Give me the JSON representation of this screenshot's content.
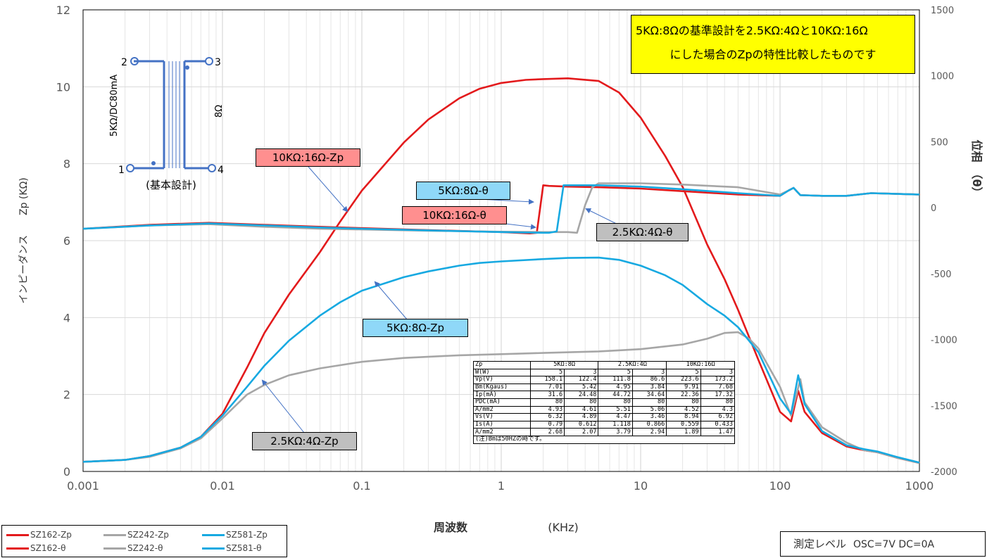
{
  "chart_data": {
    "type": "line",
    "x_scale": "log",
    "xlim": [
      0.001,
      1000
    ],
    "ylim": [
      0,
      12
    ],
    "y2lim": [
      -2000,
      1500
    ],
    "x_ticks": [
      "0.001",
      "0.01",
      "0.1",
      "1",
      "10",
      "100",
      "1000"
    ],
    "y_ticks": [
      "0",
      "2",
      "4",
      "6",
      "8",
      "10",
      "12"
    ],
    "y2_ticks": [
      "-2000",
      "-1500",
      "-1000",
      "-500",
      "0",
      "500",
      "1000",
      "1500"
    ],
    "xlabel": "周波数",
    "xlabel_unit": "(KHz)",
    "ylabel": "インピーダンス　　Zp (KΩ)",
    "y2label": "位相　（θ）",
    "grid": true,
    "series": [
      {
        "name": "SZ162-Zp",
        "axis": "left",
        "color": "#e31a1c",
        "x": [
          0.001,
          0.002,
          0.003,
          0.005,
          0.007,
          0.01,
          0.015,
          0.02,
          0.03,
          0.05,
          0.07,
          0.1,
          0.2,
          0.3,
          0.5,
          0.7,
          1,
          1.5,
          2,
          3,
          5,
          7,
          10,
          15,
          20,
          30,
          40,
          50,
          70,
          100,
          120,
          135,
          150,
          200,
          300,
          400,
          500,
          700,
          1000
        ],
        "values": [
          0.25,
          0.3,
          0.4,
          0.62,
          0.9,
          1.5,
          2.7,
          3.6,
          4.6,
          5.7,
          6.5,
          7.3,
          8.55,
          9.15,
          9.7,
          9.95,
          10.1,
          10.18,
          10.2,
          10.22,
          10.15,
          9.85,
          9.2,
          8.2,
          7.4,
          5.9,
          5.0,
          4.2,
          2.9,
          1.55,
          1.3,
          2.1,
          1.55,
          1.0,
          0.65,
          0.55,
          0.5,
          0.35,
          0.22
        ]
      },
      {
        "name": "SZ242-Zp",
        "axis": "left",
        "color": "#a6a6a6",
        "x": [
          0.001,
          0.002,
          0.003,
          0.005,
          0.007,
          0.01,
          0.015,
          0.02,
          0.03,
          0.05,
          0.1,
          0.2,
          0.5,
          1,
          2,
          5,
          10,
          20,
          30,
          40,
          50,
          60,
          70,
          100,
          120,
          140,
          150,
          200,
          300,
          400,
          500,
          700,
          1000
        ],
        "values": [
          0.25,
          0.3,
          0.38,
          0.6,
          0.86,
          1.38,
          2.0,
          2.25,
          2.5,
          2.68,
          2.85,
          2.95,
          3.02,
          3.05,
          3.08,
          3.12,
          3.18,
          3.3,
          3.45,
          3.6,
          3.62,
          3.45,
          3.2,
          2.2,
          1.45,
          2.4,
          1.8,
          1.15,
          0.75,
          0.55,
          0.5,
          0.35,
          0.22
        ]
      },
      {
        "name": "SZ581-Zp",
        "axis": "left",
        "color": "#17a9e1",
        "x": [
          0.001,
          0.002,
          0.003,
          0.005,
          0.007,
          0.01,
          0.015,
          0.02,
          0.03,
          0.05,
          0.07,
          0.1,
          0.2,
          0.3,
          0.5,
          0.7,
          1,
          2,
          3,
          5,
          7,
          10,
          15,
          20,
          30,
          40,
          50,
          70,
          100,
          120,
          135,
          150,
          200,
          300,
          400,
          500,
          700,
          1000
        ],
        "values": [
          0.25,
          0.3,
          0.4,
          0.62,
          0.9,
          1.45,
          2.2,
          2.75,
          3.4,
          4.05,
          4.4,
          4.7,
          5.05,
          5.2,
          5.35,
          5.42,
          5.46,
          5.52,
          5.55,
          5.56,
          5.5,
          5.35,
          5.1,
          4.85,
          4.35,
          4.05,
          3.75,
          3.1,
          1.9,
          1.5,
          2.5,
          1.75,
          1.05,
          0.68,
          0.58,
          0.52,
          0.37,
          0.23
        ]
      },
      {
        "name": "SZ162-θ",
        "axis": "right",
        "color": "#e31a1c",
        "x": [
          0.001,
          0.003,
          0.008,
          0.02,
          0.05,
          0.1,
          0.3,
          1,
          1.6,
          1.8,
          2.0,
          2.2,
          3,
          5,
          10,
          20,
          50,
          100,
          115,
          125,
          140,
          200,
          300,
          450,
          1000
        ],
        "values": [
          -160,
          -130,
          -115,
          -130,
          -145,
          -155,
          -170,
          -185,
          -195,
          -190,
          170,
          165,
          160,
          155,
          145,
          125,
          100,
          90,
          130,
          150,
          95,
          90,
          90,
          110,
          100
        ]
      },
      {
        "name": "SZ242-θ",
        "axis": "right",
        "color": "#a6a6a6",
        "x": [
          0.001,
          0.003,
          0.008,
          0.02,
          0.05,
          0.1,
          0.3,
          1,
          2,
          3,
          3.5,
          4,
          4.5,
          5,
          7,
          10,
          20,
          50,
          100,
          115,
          125,
          140,
          200,
          300,
          450,
          1000
        ],
        "values": [
          -160,
          -135,
          -125,
          -145,
          -160,
          -165,
          -175,
          -182,
          -185,
          -185,
          -190,
          20,
          155,
          185,
          185,
          185,
          175,
          155,
          100,
          130,
          150,
          95,
          90,
          90,
          110,
          100
        ]
      },
      {
        "name": "SZ581-θ",
        "axis": "right",
        "color": "#17a9e1",
        "x": [
          0.001,
          0.003,
          0.008,
          0.02,
          0.05,
          0.1,
          0.3,
          1,
          2,
          2.2,
          2.5,
          2.8,
          3,
          5,
          10,
          20,
          50,
          100,
          115,
          125,
          140,
          200,
          300,
          450,
          1000
        ],
        "values": [
          -160,
          -135,
          -120,
          -135,
          -150,
          -160,
          -172,
          -185,
          -190,
          -190,
          -180,
          170,
          170,
          170,
          160,
          140,
          110,
          90,
          130,
          150,
          95,
          90,
          90,
          110,
          100
        ]
      }
    ],
    "legend_position": "bottom-left"
  },
  "callouts": {
    "zp_10k": "10KΩ:16Ω-Zp",
    "theta_5k": "5KΩ:8Ω-θ",
    "theta_10k": "10KΩ:16Ω-θ",
    "theta_2k5": "2.5KΩ:4Ω-θ",
    "zp_5k": "5KΩ:8Ω-Zp",
    "zp_2k5": "2.5KΩ:4Ω-Zp"
  },
  "note": {
    "line1": "5KΩ:8Ωの基準設計を2.5KΩ:4Ωと10KΩ:16Ω",
    "line2": "にした場合のZpの特性比較したものです"
  },
  "schematic": {
    "pin1": "1",
    "pin2": "2",
    "pin3": "3",
    "pin4": "4",
    "primary": "5KΩ/DC80mA",
    "secondary": "8Ω",
    "caption": "(基本設計)"
  },
  "spec_table": {
    "header": [
      "Zp",
      "5KΩ:8Ω",
      "2.5KΩ:4Ω",
      "10KΩ:16Ω"
    ],
    "rows": [
      [
        "W(W)",
        "5",
        "3",
        "5",
        "3",
        "5",
        "3"
      ],
      [
        "Vp(V)",
        "158.1",
        "122.4",
        "111.8",
        "86.6",
        "223.6",
        "173.2"
      ],
      [
        "Bm(Kgaus)",
        "7.01",
        "5.42",
        "4.95",
        "3.84",
        "9.91",
        "7.68"
      ],
      [
        "Ip(mA)",
        "31.6",
        "24.48",
        "44.72",
        "34.64",
        "22.36",
        "17.32"
      ],
      [
        "PDC(mA)",
        "80",
        "80",
        "80",
        "80",
        "80",
        "80"
      ],
      [
        "A/mm2",
        "4.93",
        "4.61",
        "5.51",
        "5.06",
        "4.52",
        "4.3"
      ],
      [
        "Vs(V)",
        "6.32",
        "4.89",
        "4.47",
        "3.46",
        "8.94",
        "6.92"
      ],
      [
        "Is(A)",
        "0.79",
        "0.612",
        "1.118",
        "0.866",
        "0.559",
        "0.433"
      ],
      [
        "A/mm2",
        "2.68",
        "2.07",
        "3.79",
        "2.94",
        "1.89",
        "1.47"
      ]
    ],
    "footnote": "(注)Bmは50HZの時です。"
  },
  "legend": {
    "items": [
      {
        "label": "SZ162-Zp",
        "color": "#e31a1c"
      },
      {
        "label": "SZ242-Zp",
        "color": "#a6a6a6"
      },
      {
        "label": "SZ581-Zp",
        "color": "#17a9e1"
      },
      {
        "label": "SZ162-θ",
        "color": "#e31a1c"
      },
      {
        "label": "SZ242-θ",
        "color": "#a6a6a6"
      },
      {
        "label": "SZ581-θ",
        "color": "#17a9e1"
      }
    ]
  },
  "measure": {
    "label": "測定レベル",
    "value": "OSC=7V DC=0A"
  },
  "colors": {
    "zp_10k_bg": "#ff8f8f",
    "theta_10k_bg": "#ff8f8f",
    "theta_5k_bg": "#8fd8f8",
    "zp_5k_bg": "#8fd8f8",
    "gray_bg": "#bfbfbf",
    "note_bg": "#ffff00",
    "schematic": "#4472c4"
  }
}
